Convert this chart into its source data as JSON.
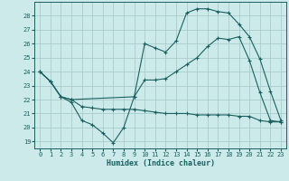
{
  "xlabel": "Humidex (Indice chaleur)",
  "bg_color": "#cceaea",
  "grid_color": "#aacccc",
  "line_color": "#1a6060",
  "xlim": [
    -0.5,
    23.5
  ],
  "ylim": [
    18.5,
    29.0
  ],
  "xticks": [
    0,
    1,
    2,
    3,
    4,
    5,
    6,
    7,
    8,
    9,
    10,
    11,
    12,
    13,
    14,
    15,
    16,
    17,
    18,
    19,
    20,
    21,
    22,
    23
  ],
  "yticks": [
    19,
    20,
    21,
    22,
    23,
    24,
    25,
    26,
    27,
    28
  ],
  "series1_x": [
    0,
    1,
    2,
    3,
    4,
    5,
    6,
    7,
    8,
    9,
    10,
    11,
    12,
    13,
    14,
    15,
    16,
    17,
    18,
    19,
    20,
    21,
    22,
    23
  ],
  "series1_y": [
    24.0,
    23.3,
    22.2,
    21.8,
    20.5,
    20.2,
    19.6,
    18.9,
    20.0,
    22.2,
    23.4,
    23.4,
    23.5,
    24.0,
    24.5,
    25.0,
    25.8,
    26.4,
    26.3,
    26.5,
    24.8,
    22.5,
    20.5,
    20.4
  ],
  "series2_x": [
    0,
    1,
    2,
    3,
    4,
    5,
    6,
    7,
    8,
    9,
    10,
    11,
    12,
    13,
    14,
    15,
    16,
    17,
    18,
    19,
    20,
    21,
    22,
    23
  ],
  "series2_y": [
    24.0,
    23.3,
    22.2,
    22.0,
    21.5,
    21.4,
    21.3,
    21.3,
    21.3,
    21.3,
    21.2,
    21.1,
    21.0,
    21.0,
    21.0,
    20.9,
    20.9,
    20.9,
    20.9,
    20.8,
    20.8,
    20.5,
    20.4,
    20.4
  ],
  "series3_x": [
    0,
    1,
    2,
    3,
    9,
    10,
    11,
    12,
    13,
    14,
    15,
    16,
    17,
    18,
    19,
    20,
    21,
    22,
    23
  ],
  "series3_y": [
    24.0,
    23.3,
    22.2,
    22.0,
    22.2,
    26.0,
    25.7,
    25.4,
    26.2,
    28.2,
    28.5,
    28.5,
    28.3,
    28.2,
    27.4,
    26.5,
    24.9,
    22.6,
    20.5
  ]
}
